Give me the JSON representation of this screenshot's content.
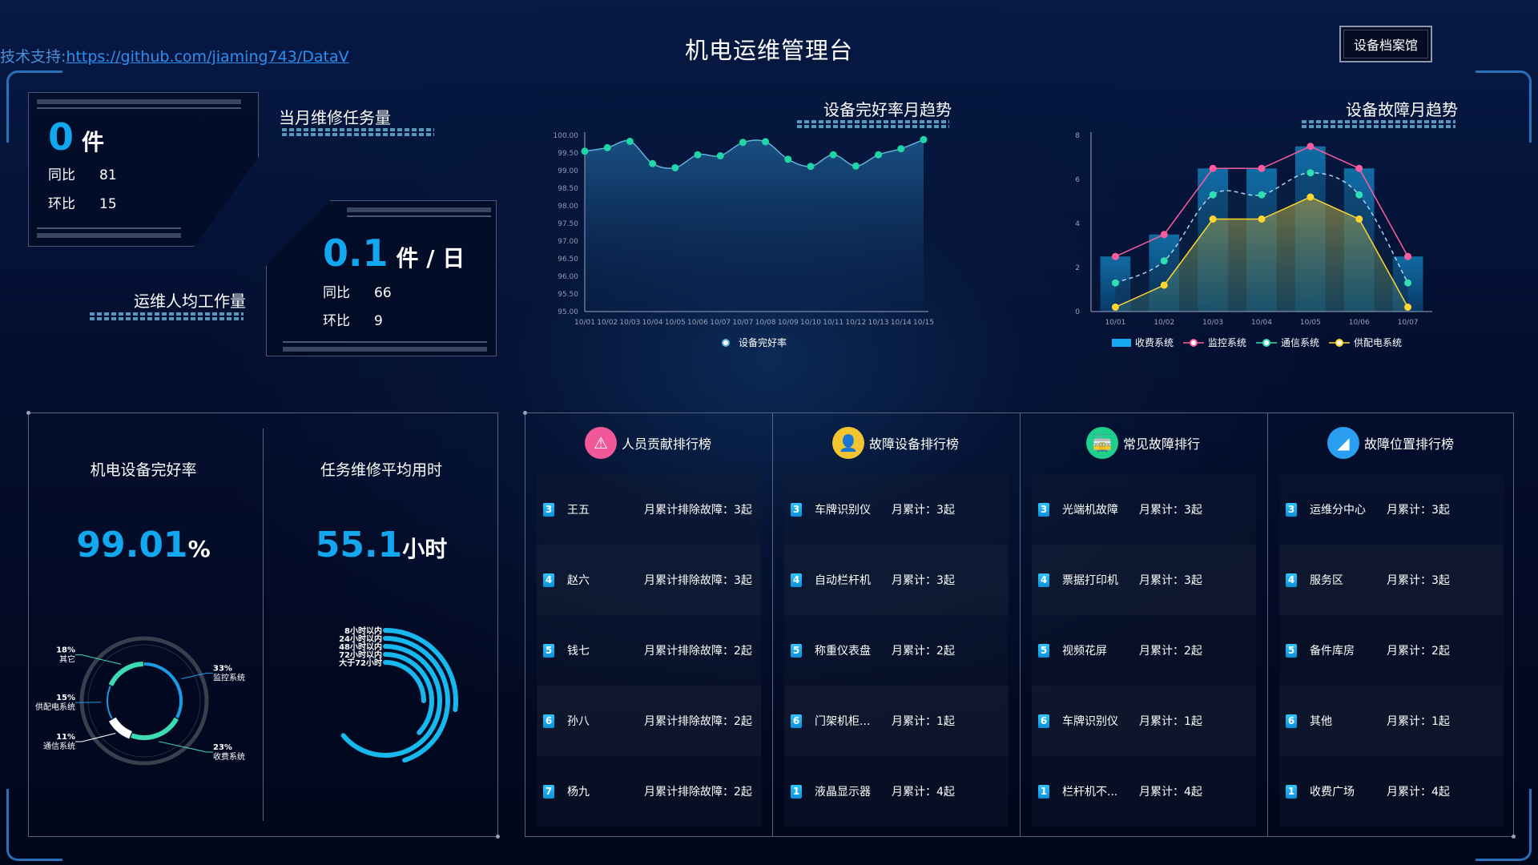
{
  "header": {
    "title": "机电运维管理台",
    "tech_label": "技术支持:",
    "tech_link": "https://github.com/jiaming743/DataV",
    "archive_button": "设备档案馆"
  },
  "cards": {
    "monthly": {
      "label": "当月维修任务量",
      "value": "0",
      "unit": "件",
      "yoy_label": "同比",
      "yoy": "81",
      "mom_label": "环比",
      "mom": "15"
    },
    "per_person": {
      "label": "运维人均工作量",
      "value": "0.1",
      "unit": "件 / 日",
      "yoy_label": "同比",
      "yoy": "66",
      "mom_label": "环比",
      "mom": "9"
    }
  },
  "panels": {
    "good_rate": {
      "title": "机电设备完好率",
      "value": "99.01",
      "unit": "%"
    },
    "avg_time": {
      "title": "任务维修平均用时",
      "value": "55.1",
      "unit": "小时"
    }
  },
  "chart_data": [
    {
      "type": "area",
      "title": "设备完好率月趋势",
      "ylim": [
        95,
        100
      ],
      "yticks": [
        "95.00",
        "95.50",
        "96.00",
        "96.50",
        "97.00",
        "97.50",
        "98.00",
        "98.50",
        "99.00",
        "99.50",
        "100.00"
      ],
      "categories": [
        "10/01",
        "10/02",
        "10/03",
        "10/04",
        "10/05",
        "10/06",
        "10/07",
        "10/07",
        "10/08",
        "10/09",
        "10/10",
        "10/11",
        "10/12",
        "10/13",
        "10/14",
        "10/15"
      ],
      "series": [
        {
          "name": "设备完好率",
          "values": [
            99.55,
            99.65,
            99.83,
            99.2,
            99.08,
            99.45,
            99.42,
            99.8,
            99.82,
            99.32,
            99.12,
            99.45,
            99.13,
            99.45,
            99.62,
            99.88
          ]
        }
      ],
      "legend": "bottom",
      "colors": {
        "line": "#5fb3d9",
        "point": "#1fd6a6"
      }
    },
    {
      "type": "bar",
      "title": "设备故障月趋势",
      "ylim": [
        0,
        8
      ],
      "yticks": [
        "0",
        "2",
        "4",
        "6",
        "8"
      ],
      "categories": [
        "10/01",
        "10/02",
        "10/03",
        "10/04",
        "10/05",
        "10/06",
        "10/07"
      ],
      "series": [
        {
          "name": "收费系统",
          "kind": "bar",
          "color": "#16a8f0",
          "values": [
            2.5,
            3.5,
            6.5,
            6.5,
            7.5,
            6.5,
            2.5
          ]
        },
        {
          "name": "监控系统",
          "kind": "line",
          "color": "#ff5ca0",
          "values": [
            2.5,
            3.5,
            6.5,
            6.5,
            7.5,
            6.5,
            2.5
          ]
        },
        {
          "name": "通信系统",
          "kind": "smooth-dashed",
          "color": "#2fe0b0",
          "values": [
            1.3,
            2.3,
            5.3,
            5.3,
            6.3,
            5.3,
            1.3
          ]
        },
        {
          "name": "供配电系统",
          "kind": "area",
          "color": "#ffd630",
          "values": [
            0.2,
            1.2,
            4.2,
            4.2,
            5.2,
            4.2,
            0.2
          ]
        }
      ],
      "legend": "bottom"
    },
    {
      "type": "pie",
      "variant": "ring",
      "slices": [
        {
          "name": "监控系统",
          "value": 33,
          "label": "33%",
          "color": "#1a9be6"
        },
        {
          "name": "收费系统",
          "value": 23,
          "label": "23%",
          "color": "#3ddbb4"
        },
        {
          "name": "通信系统",
          "value": 11,
          "label": "11%",
          "color": "#ffffff"
        },
        {
          "name": "供配电系统",
          "value": 15,
          "label": "15%",
          "color": "#1a9be6"
        },
        {
          "name": "其它",
          "value": 18,
          "label": "18%",
          "color": "#3ddbb4"
        }
      ]
    },
    {
      "type": "radial-bar",
      "color": "#17b8ee",
      "categories": [
        "8小时以内",
        "24小时以内",
        "48小时以内",
        "72小时以内",
        "大于72小时"
      ],
      "values": [
        27,
        45,
        64,
        37,
        25
      ],
      "max": 100
    }
  ],
  "rankings": [
    {
      "title": "人员贡献排行榜",
      "icon": "warning-icon",
      "color": "#f0589a",
      "rows": [
        {
          "rank": "3",
          "name": "王五",
          "value": "月累计排除故障：3起"
        },
        {
          "rank": "4",
          "name": "赵六",
          "value": "月累计排除故障：3起"
        },
        {
          "rank": "5",
          "name": "钱七",
          "value": "月累计排除故障：2起"
        },
        {
          "rank": "6",
          "name": "孙八",
          "value": "月累计排除故障：2起"
        },
        {
          "rank": "7",
          "name": "杨九",
          "value": "月累计排除故障：2起"
        }
      ]
    },
    {
      "title": "故障设备排行榜",
      "icon": "user-icon",
      "color": "#f2c630",
      "rows": [
        {
          "rank": "3",
          "name": "车牌识别仪",
          "value": "月累计：3起"
        },
        {
          "rank": "4",
          "name": "自动栏杆机",
          "value": "月累计：3起"
        },
        {
          "rank": "5",
          "name": "称重仪表盘",
          "value": "月累计：2起"
        },
        {
          "rank": "6",
          "name": "门架机柜...",
          "value": "月累计：1起"
        },
        {
          "rank": "1",
          "name": "液晶显示器",
          "value": "月累计：4起"
        }
      ]
    },
    {
      "title": "常见故障排行",
      "icon": "train-icon",
      "color": "#1fcf8c",
      "rows": [
        {
          "rank": "3",
          "name": "光端机故障",
          "value": "月累计：3起"
        },
        {
          "rank": "4",
          "name": "票据打印机",
          "value": "月累计：3起"
        },
        {
          "rank": "5",
          "name": "视频花屏",
          "value": "月累计：2起"
        },
        {
          "rank": "6",
          "name": "车牌识别仪",
          "value": "月累计：1起"
        },
        {
          "rank": "1",
          "name": "栏杆机不...",
          "value": "月累计：4起"
        }
      ]
    },
    {
      "title": "故障位置排行榜",
      "icon": "road-icon",
      "color": "#2a9ef0",
      "rows": [
        {
          "rank": "3",
          "name": "运维分中心",
          "value": "月累计：3起"
        },
        {
          "rank": "4",
          "name": "服务区",
          "value": "月累计：3起"
        },
        {
          "rank": "5",
          "name": "备件库房",
          "value": "月累计：2起"
        },
        {
          "rank": "6",
          "name": "其他",
          "value": "月累计：1起"
        },
        {
          "rank": "1",
          "name": "收费广场",
          "value": "月累计：4起"
        }
      ]
    }
  ]
}
